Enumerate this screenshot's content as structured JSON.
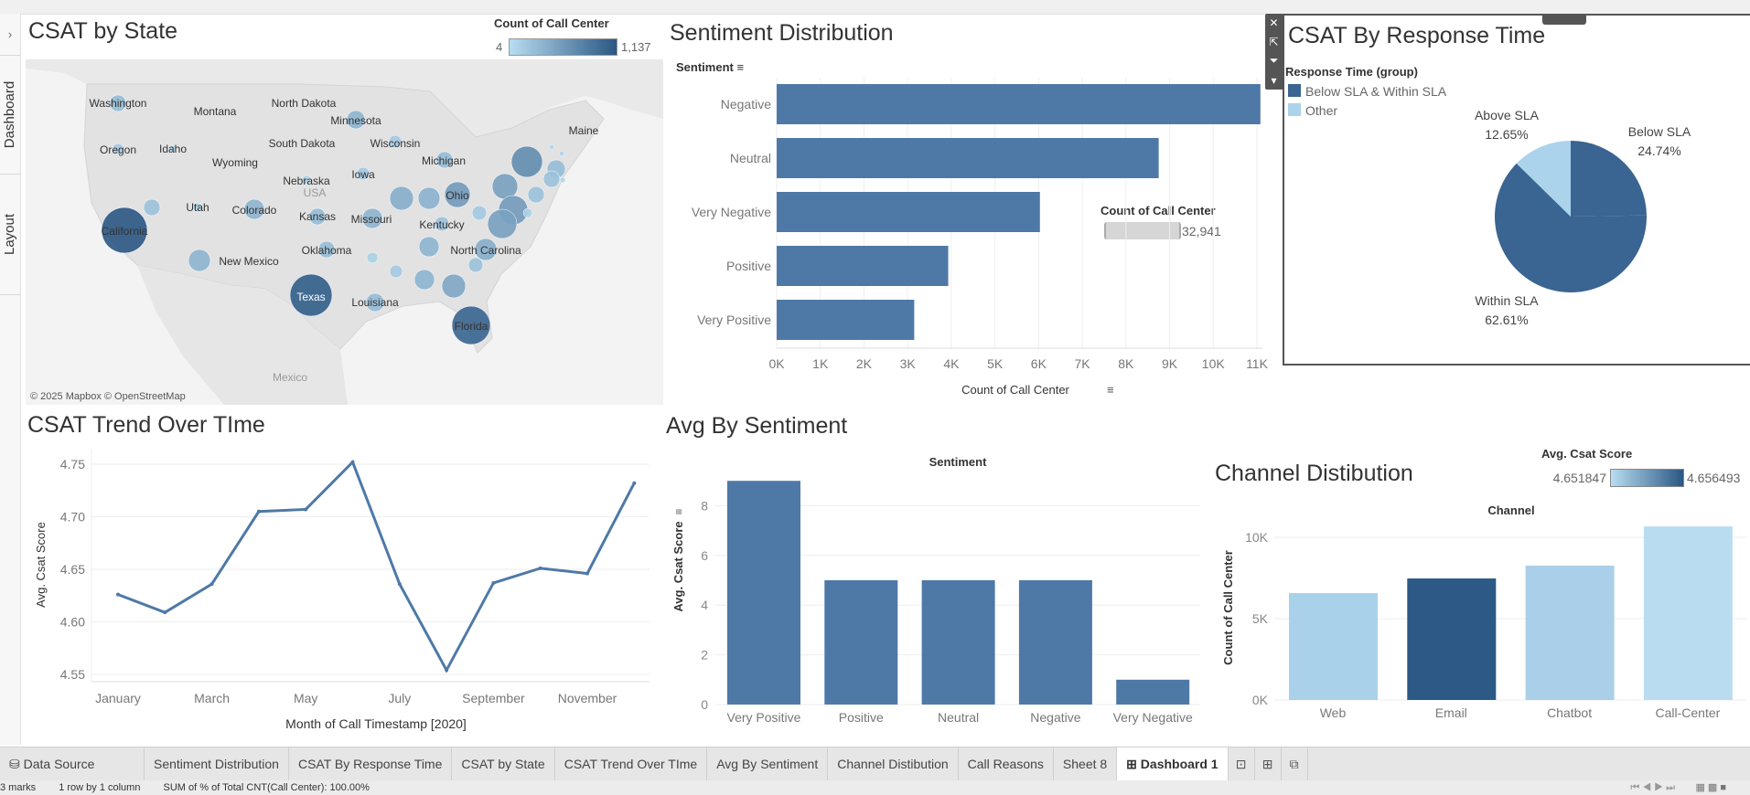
{
  "sidebar": {
    "tabs": [
      "Dashboard",
      "Layout"
    ],
    "expand_icon": "chevron-right-icon"
  },
  "map": {
    "title": "CSAT by State",
    "legend_title": "Count of Call Center",
    "legend_min": "4",
    "legend_max": "1,137",
    "legend_colors": [
      "#b9ddf1",
      "#2a5783"
    ],
    "attribution": "© 2025 Mapbox © OpenStreetMap",
    "country_labels": [
      "USA",
      "Mexico"
    ],
    "state_labels": [
      "Washington",
      "Montana",
      "North Dakota",
      "Minnesota",
      "South Dakota",
      "Wisconsin",
      "Maine",
      "Oregon",
      "Idaho",
      "Wyoming",
      "Michigan",
      "Iowa",
      "Nebraska",
      "Utah",
      "Colorado",
      "Kansas",
      "Missouri",
      "Ohio",
      "Kentucky",
      "California",
      "New Mexico",
      "Oklahoma",
      "North Carolina",
      "Texas",
      "Louisiana",
      "Florida"
    ],
    "marks": [
      {
        "state": "Washington",
        "level": 0.25
      },
      {
        "state": "Oregon",
        "level": 0.15
      },
      {
        "state": "Idaho",
        "level": 0.08
      },
      {
        "state": "Minnesota",
        "level": 0.3
      },
      {
        "state": "Wisconsin",
        "level": 0.15
      },
      {
        "state": "Michigan",
        "level": 0.25
      },
      {
        "state": "Iowa",
        "level": 0.15
      },
      {
        "state": "Nebraska",
        "level": 0.1
      },
      {
        "state": "Utah",
        "level": 0.1
      },
      {
        "state": "",
        "level": 0.2
      },
      {
        "state": "California",
        "level": 1.0
      },
      {
        "state": "Colorado",
        "level": 0.3
      },
      {
        "state": "Kansas",
        "level": 0.25
      },
      {
        "state": "Missouri",
        "level": 0.3
      },
      {
        "state": "",
        "level": 0.35
      },
      {
        "state": "",
        "level": 0.32
      },
      {
        "state": "Ohio",
        "level": 0.5
      },
      {
        "state": "",
        "level": 0.45
      },
      {
        "state": "",
        "level": 0.6
      },
      {
        "state": "",
        "level": 0.25
      },
      {
        "state": "",
        "level": 0.2
      },
      {
        "state": "",
        "level": 0.2
      },
      {
        "state": "",
        "level": 0.5
      },
      {
        "state": "",
        "level": 0.45
      },
      {
        "state": "",
        "level": 0.15
      },
      {
        "state": "",
        "level": 0.1
      },
      {
        "state": "Kentucky",
        "level": 0.2
      },
      {
        "state": "",
        "level": 0.3
      },
      {
        "state": "North Carolina",
        "level": 0.35
      },
      {
        "state": "",
        "level": 0.2
      },
      {
        "state": "",
        "level": 0.4
      },
      {
        "state": "",
        "level": 0.3
      },
      {
        "state": "",
        "level": 0.15
      },
      {
        "state": "",
        "level": 0.1
      },
      {
        "state": "Oklahoma",
        "level": 0.25
      },
      {
        "state": "New Mexico",
        "level": 0.3
      },
      {
        "state": "Texas",
        "level": 0.95
      },
      {
        "state": "Louisiana",
        "level": 0.25
      },
      {
        "state": "Florida",
        "level": 0.9
      },
      {
        "state": "",
        "level": 0.05
      },
      {
        "state": "",
        "level": 0.05
      },
      {
        "state": "",
        "level": 0.05
      }
    ]
  },
  "sentiment_panel": {
    "title": "Sentiment Distribution",
    "header": "Sentiment",
    "legend_title": "Count of Call Center",
    "legend_value": "32,941",
    "sort_icon": "sort-icon"
  },
  "pie_panel": {
    "title": "CSAT By Response Time",
    "legend_title": "Response Time (group)",
    "legend": [
      {
        "label": "Below SLA & Within SLA",
        "color": "#3a6491"
      },
      {
        "label": "Other",
        "color": "#abd3ec"
      }
    ],
    "tools": [
      "close-icon",
      "popout-icon",
      "filter-icon",
      "dropdown-icon"
    ]
  },
  "trend_panel": {
    "title": "CSAT Trend Over TIme"
  },
  "avg_panel": {
    "title": "Avg By Sentiment",
    "header": "Sentiment"
  },
  "channel_panel": {
    "title": "Channel Distibution",
    "header": "Channel",
    "legend_title": "Avg. Csat Score",
    "legend_min": "4.651847",
    "legend_max": "4.656493",
    "legend_colors": [
      "#b9ddf1",
      "#2a5783"
    ]
  },
  "chart_data": [
    {
      "id": "sentiment",
      "type": "bar",
      "orientation": "horizontal",
      "categories": [
        "Negative",
        "Neutral",
        "Very Negative",
        "Positive",
        "Very Positive"
      ],
      "values": [
        11080,
        8750,
        6030,
        3930,
        3151
      ],
      "xlabel": "Count of Call Center",
      "ylabel": "Sentiment",
      "xticks": [
        "0K",
        "1K",
        "2K",
        "3K",
        "4K",
        "5K",
        "6K",
        "7K",
        "8K",
        "9K",
        "10K",
        "11K"
      ],
      "xlim": [
        0,
        11000
      ],
      "grid": true,
      "color": "#4e79a7"
    },
    {
      "id": "pie",
      "type": "pie",
      "title": "CSAT By Response Time",
      "slices": [
        {
          "label": "Below SLA",
          "value": 24.74,
          "text": "24.74%",
          "group": "Below SLA & Within SLA"
        },
        {
          "label": "Within SLA",
          "value": 62.61,
          "text": "62.61%",
          "group": "Below SLA & Within SLA"
        },
        {
          "label": "Above SLA",
          "value": 12.65,
          "text": "12.65%",
          "group": "Other"
        }
      ]
    },
    {
      "id": "trend",
      "type": "line",
      "categories": [
        "January",
        "February",
        "March",
        "April",
        "May",
        "June",
        "July",
        "August",
        "September",
        "October",
        "November",
        "December"
      ],
      "xtick_labels": [
        "January",
        "",
        "March",
        "",
        "May",
        "",
        "July",
        "",
        "September",
        "",
        "November",
        ""
      ],
      "values": [
        4.626,
        4.609,
        4.636,
        4.705,
        4.707,
        4.752,
        4.636,
        4.554,
        4.637,
        4.651,
        4.646,
        4.732
      ],
      "xlabel": "Month of Call Timestamp [2020]",
      "ylabel": "Avg. Csat Score",
      "yticks": [
        "4.55",
        "4.60",
        "4.65",
        "4.70",
        "4.75"
      ],
      "ylim": [
        4.548,
        4.762
      ],
      "grid": true,
      "color": "#4e79a7"
    },
    {
      "id": "avg",
      "type": "bar",
      "categories": [
        "Very Positive",
        "Positive",
        "Neutral",
        "Negative",
        "Very Negative"
      ],
      "values": [
        9,
        5,
        5,
        5,
        1
      ],
      "xlabel": "Sentiment",
      "ylabel": "Avg. Csat Score",
      "yticks": [
        "0",
        "2",
        "4",
        "6",
        "8"
      ],
      "ylim": [
        0,
        9.4
      ],
      "grid": true,
      "color": "#4e79a7"
    },
    {
      "id": "channel",
      "type": "bar",
      "categories": [
        "Web",
        "Email",
        "Chatbot",
        "Call-Center"
      ],
      "values": [
        6570,
        7470,
        8260,
        10670
      ],
      "colors": [
        "#a9d1ea",
        "#2c5985",
        "#aacfe8",
        "#b9dcf0"
      ],
      "xlabel": "Channel",
      "ylabel": "Count of Call Center",
      "yticks": [
        "0K",
        "5K",
        "10K"
      ],
      "ylim": [
        0,
        11000
      ],
      "grid": true
    }
  ],
  "tabs": {
    "items": [
      "Data Source",
      "Sentiment Distribution",
      "CSAT By Response Time",
      "CSAT by State",
      "CSAT Trend Over TIme",
      "Avg By Sentiment",
      "Channel Distibution",
      "Call Reasons",
      "Sheet 8",
      "Dashboard 1"
    ],
    "active": "Dashboard 1",
    "icons": [
      "new-worksheet-icon",
      "new-dashboard-icon",
      "new-story-icon"
    ]
  },
  "status": {
    "marks": "3 marks",
    "rows": "1 row by 1 column",
    "summary": "SUM of % of Total CNT(Call Center): 100.00%"
  }
}
